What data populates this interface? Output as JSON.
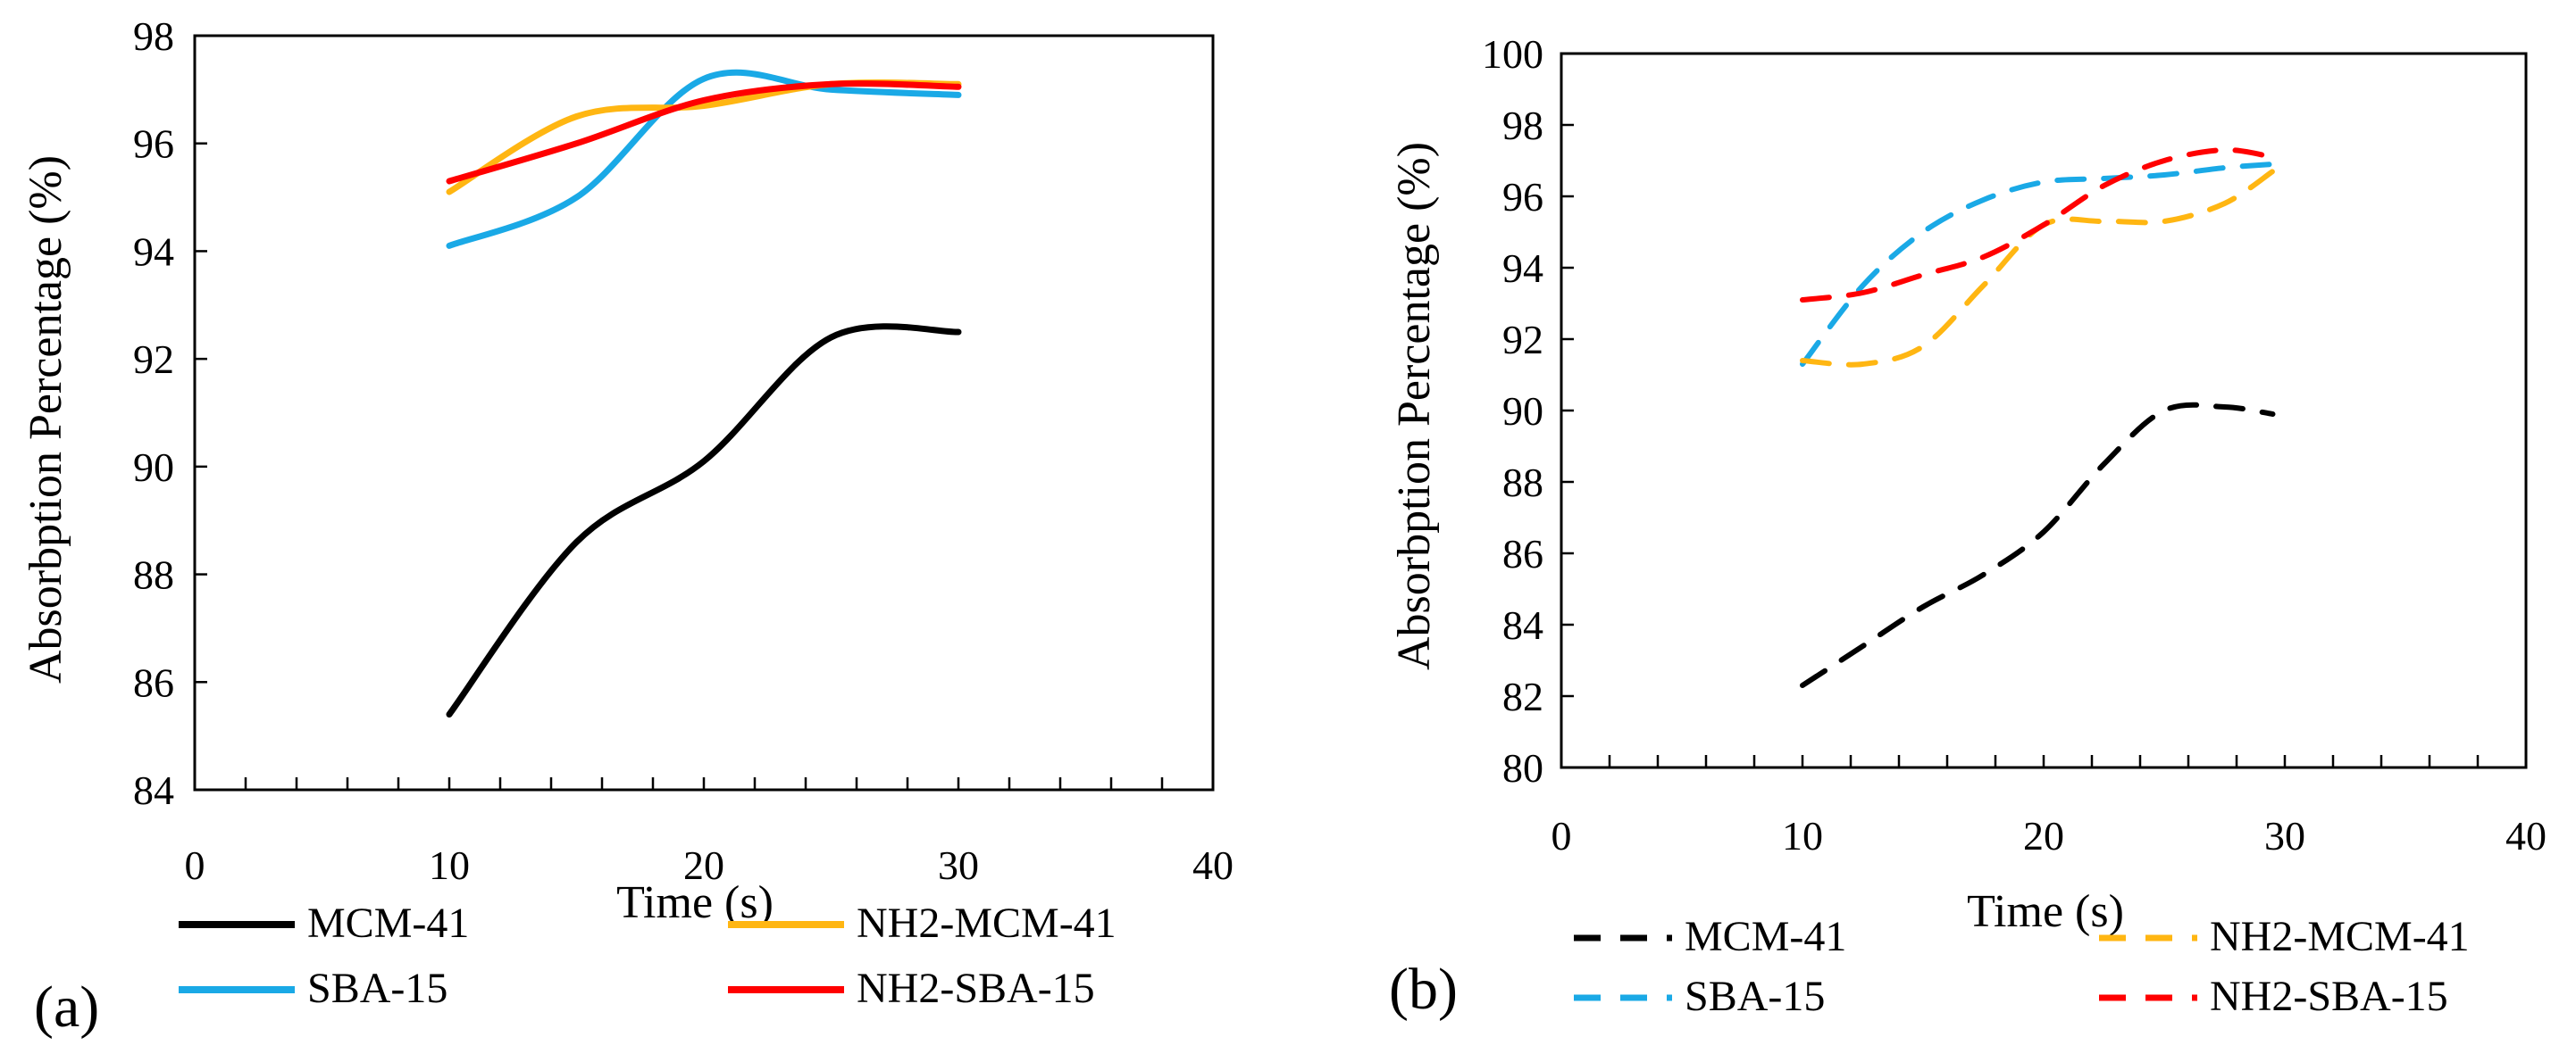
{
  "chart_data": [
    {
      "type": "line",
      "panel_label": "(a)",
      "line_style": "solid",
      "xlabel": "Time (s)",
      "ylabel": "Absorbption Percentage  (%)",
      "xlim": [
        0,
        40
      ],
      "ylim": [
        84,
        98
      ],
      "x_ticks": [
        "0",
        "10",
        "20",
        "30",
        "40"
      ],
      "y_ticks": [
        "84",
        "86",
        "88",
        "90",
        "92",
        "94",
        "96",
        "98"
      ],
      "x_minor_step": 2,
      "grid": false,
      "legend_position": "bottom",
      "x": [
        10,
        15,
        20,
        25,
        30
      ],
      "series": [
        {
          "name": "MCM-41",
          "color": "#000000",
          "values": [
            85.4,
            88.6,
            90.1,
            92.4,
            92.5
          ]
        },
        {
          "name": "SBA-15",
          "color": "#1aa9e6",
          "values": [
            94.1,
            95.0,
            97.2,
            97.0,
            96.9
          ]
        },
        {
          "name": "NH2-MCM-41",
          "color": "#ffb612",
          "values": [
            95.1,
            96.5,
            96.7,
            97.1,
            97.1
          ]
        },
        {
          "name": "NH2-SBA-15",
          "color": "#ff0000",
          "values": [
            95.3,
            96.0,
            96.8,
            97.1,
            97.05
          ]
        }
      ]
    },
    {
      "type": "line",
      "panel_label": "(b)",
      "line_style": "dashed",
      "xlabel": "Time (s)",
      "ylabel": "Absorbption  Percentage  (%)",
      "xlim": [
        0,
        40
      ],
      "ylim": [
        80,
        100
      ],
      "x_ticks": [
        "0",
        "10",
        "20",
        "30",
        "40"
      ],
      "y_ticks": [
        "80",
        "82",
        "84",
        "86",
        "88",
        "90",
        "92",
        "94",
        "96",
        "98",
        "100"
      ],
      "x_minor_step": 2,
      "grid": false,
      "legend_position": "bottom",
      "x": [
        10,
        12.5,
        15,
        17.5,
        20,
        22.5,
        25,
        27.5,
        29.5
      ],
      "series": [
        {
          "name": "MCM-41",
          "color": "#000000",
          "values": [
            82.3,
            83.4,
            84.5,
            85.4,
            86.6,
            88.5,
            90.0,
            90.1,
            89.9
          ]
        },
        {
          "name": "SBA-15",
          "color": "#1aa9e6",
          "values": [
            91.3,
            93.5,
            95.0,
            95.9,
            96.4,
            96.5,
            96.6,
            96.8,
            96.9
          ]
        },
        {
          "name": "NH2-MCM-41",
          "color": "#ffb612",
          "values": [
            91.4,
            91.3,
            91.8,
            93.5,
            95.2,
            95.3,
            95.3,
            95.8,
            96.7
          ]
        },
        {
          "name": "NH2-SBA-15",
          "color": "#ff0000",
          "values": [
            93.1,
            93.3,
            93.8,
            94.3,
            95.2,
            96.3,
            97.0,
            97.3,
            97.1
          ]
        }
      ]
    }
  ]
}
